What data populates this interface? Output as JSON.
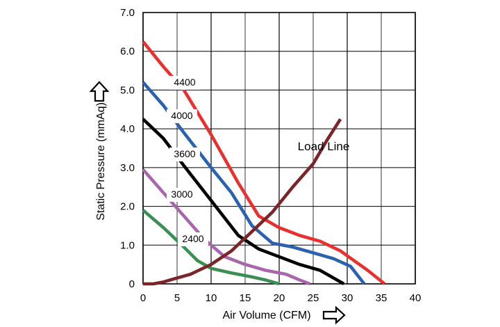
{
  "chart_data": {
    "type": "line",
    "title": "",
    "xlabel": "Air Volume (CFM)",
    "ylabel": "Static Pressure (mmAq)",
    "xlim": [
      0,
      40
    ],
    "ylim": [
      0,
      7
    ],
    "xticks": [
      "0",
      "5",
      "10",
      "15",
      "20",
      "25",
      "30",
      "35",
      "40"
    ],
    "yticks": [
      "0",
      "1.0",
      "2.0",
      "3.0",
      "4.0",
      "5.0",
      "6.0",
      "7.0"
    ],
    "grid": true,
    "series": [
      {
        "name": "4400",
        "color": "#e8312f",
        "x": [
          0,
          3,
          6,
          10,
          14,
          17,
          20,
          23,
          26,
          29,
          31,
          33,
          35.5
        ],
        "y": [
          6.25,
          5.6,
          5.0,
          3.85,
          2.6,
          1.75,
          1.45,
          1.25,
          1.1,
          0.85,
          0.6,
          0.35,
          0
        ]
      },
      {
        "name": "4000",
        "color": "#2b62b0",
        "x": [
          0,
          3,
          6,
          10,
          13,
          16,
          19,
          22,
          25,
          28,
          30.5,
          32.5
        ],
        "y": [
          5.2,
          4.6,
          3.9,
          3.0,
          2.35,
          1.5,
          1.05,
          0.95,
          0.8,
          0.65,
          0.45,
          0
        ]
      },
      {
        "name": "3600",
        "color": "#000000",
        "x": [
          0,
          3,
          6,
          10,
          14,
          17,
          20,
          23,
          26,
          28,
          29.5
        ],
        "y": [
          4.25,
          3.75,
          3.05,
          2.15,
          1.25,
          0.9,
          0.7,
          0.5,
          0.35,
          0.15,
          0
        ]
      },
      {
        "name": "3000",
        "color": "#a966ad",
        "x": [
          0,
          3,
          6,
          9,
          12,
          15,
          18,
          21,
          23,
          24.5
        ],
        "y": [
          2.95,
          2.35,
          1.75,
          1.15,
          0.7,
          0.5,
          0.35,
          0.25,
          0.1,
          0
        ]
      },
      {
        "name": "2400",
        "color": "#3a8f53",
        "x": [
          0,
          3,
          6,
          8,
          10,
          13,
          16,
          18,
          20
        ],
        "y": [
          1.9,
          1.45,
          0.95,
          0.6,
          0.4,
          0.28,
          0.18,
          0.1,
          0
        ]
      },
      {
        "name": "Load Line",
        "color": "#7b2528",
        "x": [
          0,
          1.5,
          3,
          5,
          7,
          10,
          13,
          16,
          19,
          22,
          25,
          27,
          29
        ],
        "y": [
          0,
          0,
          0.05,
          0.15,
          0.25,
          0.5,
          0.85,
          1.35,
          1.85,
          2.5,
          3.1,
          3.7,
          4.25
        ]
      }
    ],
    "annotations": [
      "4400",
      "4000",
      "3600",
      "3000",
      "2400",
      "Load Line"
    ]
  }
}
